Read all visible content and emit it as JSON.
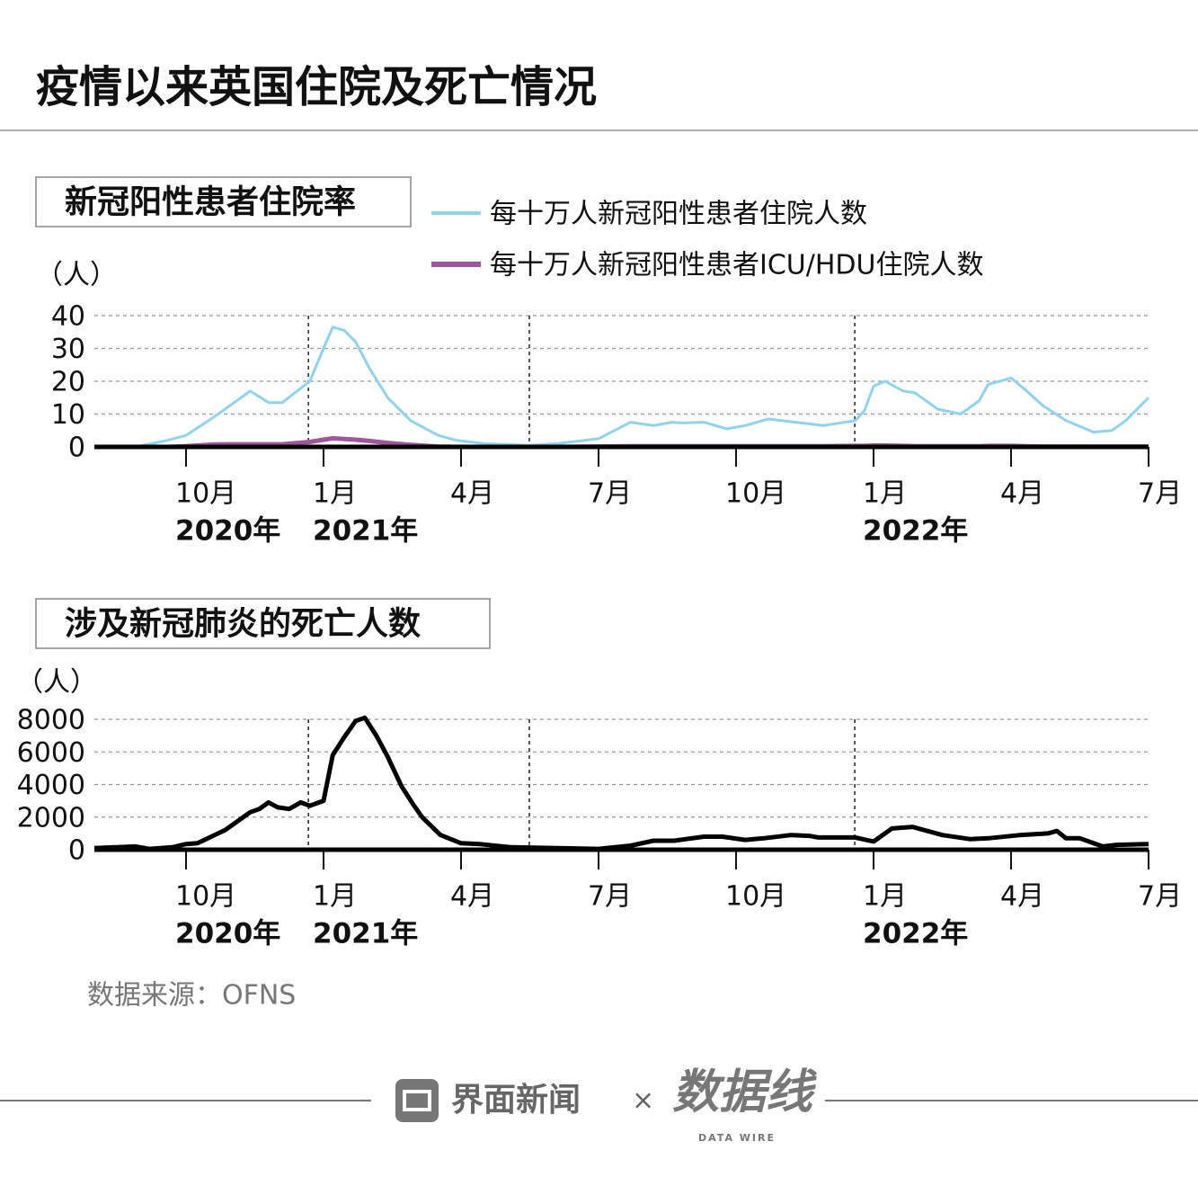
{
  "title": "疫情以来英国住院及死亡情况",
  "chart_data": [
    {
      "type": "line",
      "title": "新冠阳性患者住院率",
      "y_unit": "（人）",
      "grid": true,
      "x": [
        0,
        0.9,
        1.6,
        2,
        2.6,
        2.9,
        3.1,
        3.4,
        3.8,
        4.1,
        4.7,
        5.0,
        5.2,
        5.45,
        5.7,
        6.0,
        6.4,
        6.9,
        7.5,
        7.9,
        8.5,
        9.5,
        10.1,
        11,
        11.7,
        12.2,
        12.6,
        12.8,
        13.3,
        13.8,
        14.2,
        14.7,
        15.3,
        15.9,
        16.6,
        16.8,
        17,
        17.25,
        17.65,
        17.9,
        18.4,
        18.9,
        19.3,
        19.5,
        20,
        20.3,
        20.7,
        21.2,
        21.8,
        22.2,
        22.5,
        23
      ],
      "series": [
        {
          "name": "每十万人新冠阳性患者住院人数",
          "color": "#8fd3ec",
          "values": [
            0,
            0,
            2,
            3.5,
            9,
            12,
            14,
            17,
            13.5,
            13.5,
            20,
            30,
            36.5,
            35.5,
            32,
            24,
            15,
            8,
            3.5,
            2,
            1,
            0.5,
            1,
            2.5,
            7.5,
            6.5,
            7.5,
            7.3,
            7.5,
            5.5,
            6.5,
            8.5,
            7.5,
            6.5,
            8,
            11,
            18.5,
            20,
            17,
            16.5,
            11.5,
            10,
            14,
            19,
            21,
            17.5,
            12.5,
            8,
            4.5,
            5,
            8,
            15
          ]
        },
        {
          "name": "每十万人新冠阳性患者ICU/HDU住院人数",
          "color": "#a0569a",
          "values": [
            0,
            0,
            0,
            0.2,
            0.7,
            0.8,
            0.8,
            0.8,
            0.8,
            0.8,
            1.5,
            2.2,
            2.6,
            2.4,
            2.2,
            1.8,
            1.2,
            0.6,
            0.1,
            0,
            0,
            0,
            0,
            0.1,
            0.2,
            0.2,
            0.2,
            0.2,
            0.2,
            0.2,
            0.2,
            0.2,
            0.2,
            0.2,
            0.3,
            0.3,
            0.4,
            0.4,
            0.3,
            0.2,
            0.2,
            0.2,
            0.2,
            0.3,
            0.3,
            0.2,
            0.1,
            0.1,
            0.1,
            0.1,
            0.1,
            0.1
          ]
        }
      ],
      "xlim": [
        0,
        23
      ],
      "xticks": [
        {
          "value": 2,
          "label": "10月"
        },
        {
          "value": 5,
          "label": "1月"
        },
        {
          "value": 8,
          "label": "4月"
        },
        {
          "value": 11,
          "label": "7月"
        },
        {
          "value": 14,
          "label": "10月"
        },
        {
          "value": 17,
          "label": "1月"
        },
        {
          "value": 20,
          "label": "4月"
        },
        {
          "value": 23,
          "label": "7月"
        }
      ],
      "year_labels": [
        {
          "value": 2,
          "label": "2020年"
        },
        {
          "value": 5,
          "label": "2021年"
        },
        {
          "value": 17,
          "label": "2022年"
        }
      ],
      "vlines": [
        4.67,
        9.49,
        16.59
      ],
      "ylim": [
        0,
        40
      ],
      "yticks": [
        0,
        10,
        20,
        30,
        40
      ]
    },
    {
      "type": "line",
      "title": "涉及新冠肺炎的死亡人数",
      "y_unit": "（人）",
      "grid": true,
      "x": [
        0,
        0.9,
        1.2,
        1.7,
        2,
        2.25,
        2.85,
        3.4,
        3.6,
        3.8,
        4.0,
        4.25,
        4.5,
        4.7,
        5.0,
        5.2,
        5.45,
        5.7,
        5.9,
        6.15,
        6.4,
        6.7,
        6.95,
        7.15,
        7.55,
        8.0,
        8.4,
        9.1,
        10.1,
        11,
        11.7,
        12.2,
        12.65,
        13.3,
        13.7,
        14.2,
        14.6,
        15.2,
        15.6,
        15.8,
        16.6,
        17,
        17.4,
        17.85,
        18.5,
        19.1,
        19.5,
        20.2,
        20.8,
        21,
        21.2,
        21.5,
        22,
        22.3,
        23
      ],
      "series": [
        {
          "color": "#000000",
          "values": [
            100,
            200,
            50,
            150,
            350,
            400,
            1200,
            2300,
            2500,
            2900,
            2600,
            2500,
            2900,
            2700,
            3000,
            5800,
            6900,
            7900,
            8100,
            7000,
            5700,
            3900,
            2800,
            2000,
            900,
            400,
            350,
            150,
            100,
            50,
            250,
            550,
            550,
            800,
            800,
            600,
            700,
            900,
            850,
            750,
            750,
            500,
            1300,
            1400,
            900,
            650,
            700,
            900,
            1000,
            1150,
            700,
            700,
            200,
            300,
            350
          ]
        }
      ],
      "xlim": [
        0,
        23
      ],
      "xticks": [
        {
          "value": 2,
          "label": "10月"
        },
        {
          "value": 5,
          "label": "1月"
        },
        {
          "value": 8,
          "label": "4月"
        },
        {
          "value": 11,
          "label": "7月"
        },
        {
          "value": 14,
          "label": "10月"
        },
        {
          "value": 17,
          "label": "1月"
        },
        {
          "value": 20,
          "label": "4月"
        },
        {
          "value": 23,
          "label": "7月"
        }
      ],
      "year_labels": [
        {
          "value": 2,
          "label": "2020年"
        },
        {
          "value": 5,
          "label": "2021年"
        },
        {
          "value": 17,
          "label": "2022年"
        }
      ],
      "vlines": [
        4.67,
        9.49,
        16.59
      ],
      "ylim": [
        0,
        8000
      ],
      "yticks": [
        0,
        2000,
        4000,
        6000,
        8000
      ]
    }
  ],
  "source": "数据来源：OFNS",
  "footer": {
    "brand": "界面新闻",
    "times": "×",
    "partner": "数据线",
    "partner_en": "DATA WIRE"
  }
}
